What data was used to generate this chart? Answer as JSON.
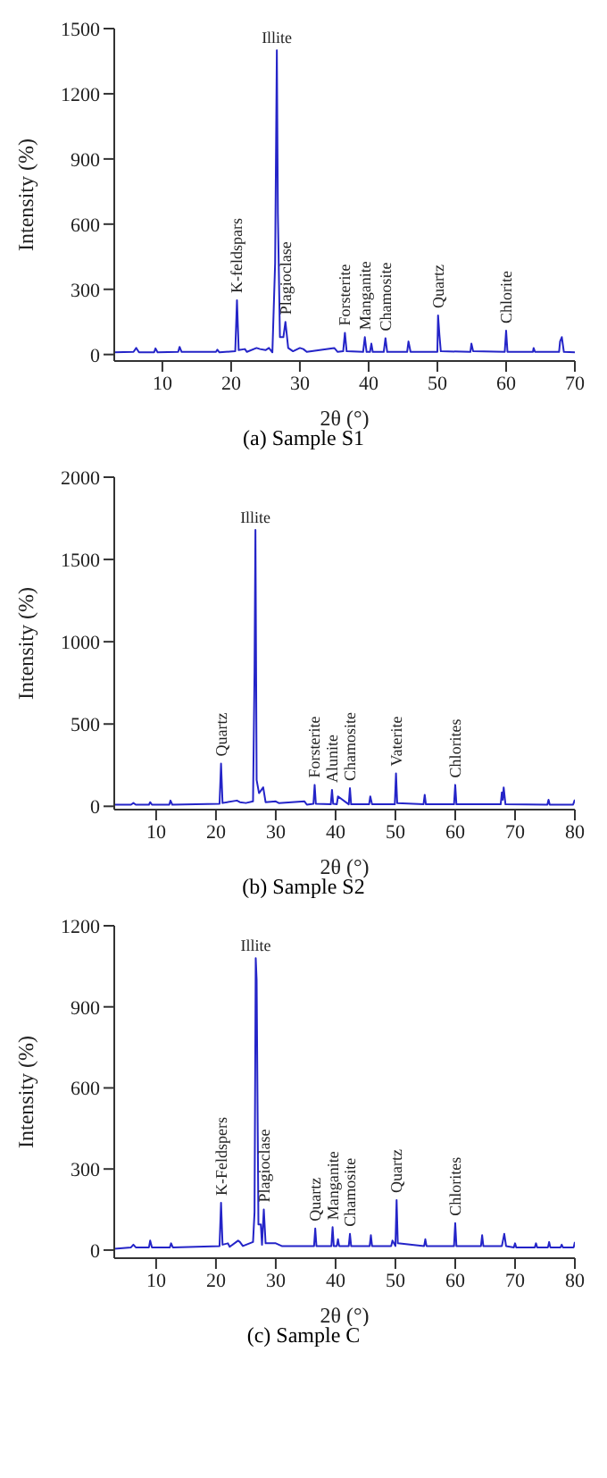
{
  "chart_data": [
    {
      "type": "line",
      "title": "(a) Sample S1",
      "xlabel": "2θ (°)",
      "ylabel": "Intensity (%)",
      "color": "#2424c8",
      "xlim": [
        3,
        70
      ],
      "xticks": [
        10,
        20,
        30,
        40,
        50,
        60,
        70
      ],
      "ylim": [
        -30,
        1500
      ],
      "yticks": [
        0,
        300,
        600,
        900,
        1200,
        1500
      ],
      "x": [
        3,
        5.8,
        6.2,
        6.6,
        8.8,
        9.0,
        9.3,
        12.3,
        12.5,
        12.8,
        17.8,
        18,
        18.3,
        20.6,
        20.85,
        21.1,
        22,
        22.3,
        23.7,
        24.2,
        25,
        25.5,
        26,
        26.4,
        26.65,
        26.8,
        27.1,
        27.6,
        27.9,
        28.3,
        29,
        30,
        30.5,
        31,
        35,
        35.5,
        36.3,
        36.55,
        36.8,
        39.2,
        39.45,
        39.7,
        40.2,
        40.4,
        40.6,
        42.2,
        42.45,
        42.7,
        45.6,
        45.8,
        46.1,
        50,
        50.1,
        50.3,
        50.5,
        54.8,
        54.95,
        55.2,
        59.8,
        60,
        60.2,
        63.9,
        64,
        64.2,
        67.7,
        67.85,
        68.1,
        68.4,
        70
      ],
      "values": [
        10,
        12,
        30,
        10,
        10,
        28,
        10,
        12,
        35,
        12,
        12,
        22,
        10,
        15,
        250,
        20,
        25,
        12,
        30,
        25,
        20,
        30,
        10,
        420,
        1400,
        650,
        80,
        80,
        150,
        30,
        15,
        30,
        25,
        12,
        30,
        12,
        15,
        100,
        15,
        12,
        80,
        12,
        12,
        50,
        12,
        12,
        75,
        12,
        12,
        60,
        12,
        12,
        180,
        90,
        15,
        12,
        50,
        15,
        12,
        110,
        12,
        12,
        30,
        12,
        12,
        60,
        80,
        12,
        10
      ],
      "annotations": [
        {
          "text": "K-feldspars",
          "x": 20.85,
          "y": 250
        },
        {
          "text": "Illite",
          "x": 26.65,
          "y": 1400
        },
        {
          "text": "Plagioclase",
          "x": 27.9,
          "y": 150
        },
        {
          "text": "Forsterite",
          "x": 36.55,
          "y": 100
        },
        {
          "text": "Manganite",
          "x": 39.45,
          "y": 80
        },
        {
          "text": "Chamosite",
          "x": 42.45,
          "y": 75
        },
        {
          "text": "Quartz",
          "x": 50.1,
          "y": 180
        },
        {
          "text": "Chlorite",
          "x": 60,
          "y": 110
        }
      ]
    },
    {
      "type": "line",
      "title": "(b) Sample S2",
      "xlabel": "2θ (°)",
      "ylabel": "Intensity (%)",
      "color": "#2424c8",
      "xlim": [
        3,
        80
      ],
      "xticks": [
        10,
        20,
        30,
        40,
        50,
        60,
        70,
        80
      ],
      "ylim": [
        -20,
        2000
      ],
      "yticks": [
        0,
        500,
        1000,
        1500,
        2000
      ],
      "x": [
        3,
        5.8,
        6.2,
        6.6,
        8.8,
        9.0,
        9.3,
        12.2,
        12.4,
        12.7,
        20.6,
        20.85,
        21.1,
        23.5,
        24,
        25,
        26.2,
        26.45,
        26.6,
        26.8,
        27.2,
        27.9,
        28.3,
        30,
        30.5,
        34.8,
        35.2,
        36.3,
        36.5,
        36.7,
        39.2,
        39.4,
        39.6,
        40.2,
        40.4,
        42.2,
        42.4,
        42.6,
        45.6,
        45.8,
        46.1,
        49.9,
        50.1,
        50.3,
        54.7,
        54.9,
        55.1,
        59.8,
        60,
        60.2,
        67.6,
        67.8,
        67.95,
        68.1,
        68.4,
        75.4,
        75.6,
        75.8,
        79.7,
        80
      ],
      "values": [
        10,
        10,
        20,
        10,
        10,
        25,
        10,
        10,
        35,
        10,
        15,
        260,
        20,
        35,
        25,
        20,
        30,
        820,
        1680,
        160,
        80,
        115,
        25,
        30,
        20,
        30,
        10,
        15,
        130,
        15,
        12,
        100,
        15,
        12,
        60,
        12,
        110,
        12,
        12,
        60,
        12,
        12,
        200,
        20,
        12,
        70,
        12,
        12,
        130,
        12,
        12,
        85,
        40,
        115,
        12,
        10,
        40,
        10,
        10,
        40
      ],
      "annotations": [
        {
          "text": "Quartz",
          "x": 20.85,
          "y": 260
        },
        {
          "text": "Illite",
          "x": 26.6,
          "y": 1680
        },
        {
          "text": "Forsterite",
          "x": 36.5,
          "y": 130
        },
        {
          "text": "Alunite",
          "x": 39.4,
          "y": 100
        },
        {
          "text": "Chamosite",
          "x": 42.4,
          "y": 110
        },
        {
          "text": "Vaterite",
          "x": 50.1,
          "y": 200
        },
        {
          "text": "Chlorites",
          "x": 60,
          "y": 130
        }
      ]
    },
    {
      "type": "line",
      "title": "(c) Sample C",
      "xlabel": "2θ (°)",
      "ylabel": "Intensity (%)",
      "color": "#2424c8",
      "xlim": [
        3,
        80
      ],
      "xticks": [
        10,
        20,
        30,
        40,
        50,
        60,
        70,
        80
      ],
      "ylim": [
        -30,
        1200
      ],
      "yticks": [
        0,
        300,
        600,
        900,
        1200
      ],
      "x": [
        3,
        5.8,
        6.2,
        6.6,
        8.8,
        9.0,
        9.3,
        12.3,
        12.5,
        12.8,
        20.6,
        20.85,
        21.1,
        22,
        22.3,
        23.7,
        24,
        24.5,
        26.2,
        26.45,
        26.65,
        26.8,
        27.1,
        27.5,
        27.7,
        28,
        28.3,
        30,
        30.5,
        31,
        36.4,
        36.6,
        36.8,
        39.3,
        39.5,
        39.7,
        40.2,
        40.4,
        40.6,
        42.2,
        42.4,
        42.6,
        45.7,
        45.9,
        46.1,
        49.3,
        49.5,
        50,
        50.2,
        50.4,
        54.8,
        55,
        55.2,
        59.8,
        60,
        60.2,
        64.3,
        64.5,
        64.7,
        67.8,
        68.2,
        68.5,
        69.8,
        70,
        70.2,
        73.3,
        73.5,
        73.7,
        75.5,
        75.7,
        75.9,
        77.6,
        77.8,
        78,
        79.8,
        80
      ],
      "values": [
        5,
        10,
        20,
        10,
        10,
        35,
        10,
        10,
        25,
        10,
        15,
        175,
        20,
        25,
        12,
        35,
        30,
        15,
        30,
        140,
        1080,
        1000,
        95,
        95,
        20,
        150,
        25,
        25,
        20,
        15,
        15,
        80,
        15,
        15,
        85,
        15,
        15,
        40,
        15,
        15,
        60,
        15,
        15,
        55,
        15,
        15,
        35,
        15,
        185,
        25,
        15,
        40,
        15,
        15,
        100,
        15,
        15,
        55,
        15,
        15,
        60,
        15,
        10,
        25,
        10,
        10,
        25,
        10,
        10,
        30,
        10,
        10,
        20,
        10,
        10,
        30
      ],
      "annotations": [
        {
          "text": "K-Feldspers",
          "x": 20.85,
          "y": 175
        },
        {
          "text": "Illite",
          "x": 26.65,
          "y": 1080
        },
        {
          "text": "Plagioclase",
          "x": 28,
          "y": 150
        },
        {
          "text": "Quartz",
          "x": 36.6,
          "y": 80
        },
        {
          "text": "Manganite",
          "x": 39.5,
          "y": 85
        },
        {
          "text": "Chamosite",
          "x": 42.4,
          "y": 60
        },
        {
          "text": "Quartz",
          "x": 50.2,
          "y": 185
        },
        {
          "text": "Chlorites",
          "x": 60,
          "y": 100
        }
      ]
    }
  ]
}
